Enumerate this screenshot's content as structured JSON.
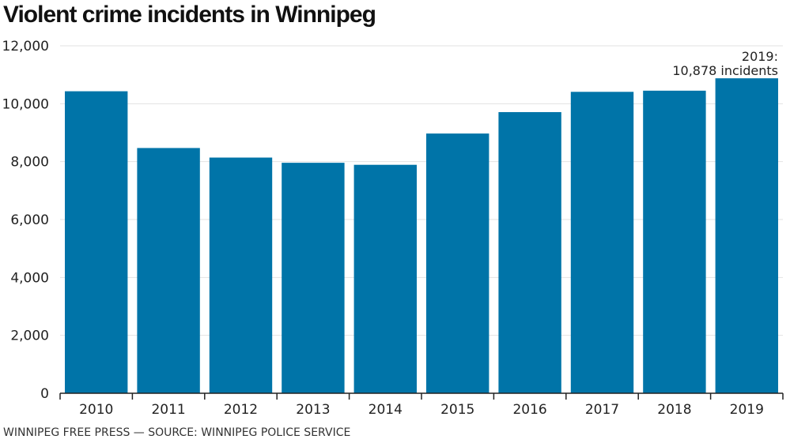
{
  "chart_data": {
    "type": "bar",
    "title": "Violent crime incidents in Winnipeg",
    "xlabel": "",
    "ylabel": "",
    "categories": [
      "2010",
      "2011",
      "2012",
      "2013",
      "2014",
      "2015",
      "2016",
      "2017",
      "2018",
      "2019"
    ],
    "values": [
      10430,
      8470,
      8140,
      7960,
      7890,
      8970,
      9710,
      10410,
      10450,
      10878
    ],
    "ylim": [
      0,
      12000
    ],
    "yticks": [
      0,
      2000,
      4000,
      6000,
      8000,
      10000,
      12000
    ],
    "ytick_labels": [
      "0",
      "2,000",
      "4,000",
      "6,000",
      "8,000",
      "10,000",
      "12,000"
    ],
    "grid": true,
    "bar_color": "#0074a8",
    "annotation": {
      "category": "2019",
      "line1": "2019:",
      "line2": "10,878 incidents"
    }
  },
  "footer": {
    "source": "WINNIPEG FREE PRESS — SOURCE: WINNIPEG POLICE SERVICE"
  }
}
